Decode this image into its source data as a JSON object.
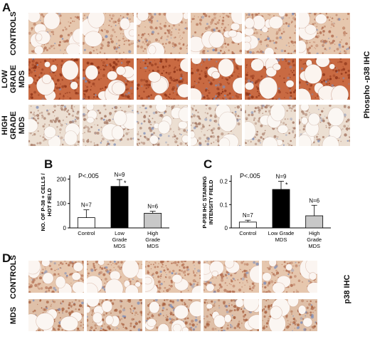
{
  "panel_a": {
    "letter": "A",
    "rows": [
      {
        "label_lines": [
          "CONTROLS"
        ],
        "tone": "control"
      },
      {
        "label_lines": [
          "LOW",
          "GRADE",
          "MDS"
        ],
        "tone": "low"
      },
      {
        "label_lines": [
          "HIGH",
          "GRADE",
          "MDS"
        ],
        "tone": "high"
      }
    ],
    "side_label": "Phospho -p38 IHC"
  },
  "panel_d": {
    "letter": "D",
    "rows": [
      {
        "label_lines": [
          "CONTROLS"
        ],
        "tone": "control"
      },
      {
        "label_lines": [
          "MDS"
        ],
        "tone": "mds"
      }
    ],
    "side_label": "p38 IHC"
  },
  "chart_data": [
    {
      "panel": "B",
      "type": "bar",
      "categories": [
        [
          "Control"
        ],
        [
          "Low",
          "Grade",
          "MDS"
        ],
        [
          "High",
          "Grade",
          "MDS"
        ]
      ],
      "values": [
        42,
        170,
        60
      ],
      "errors": [
        32,
        28,
        8
      ],
      "n_labels": [
        "N=7",
        "N=9",
        "N=6"
      ],
      "bar_colors": [
        "#ffffff",
        "#000000",
        "#c8c8c8"
      ],
      "significance": [
        "",
        "*",
        ""
      ],
      "annotation": "P<.005",
      "ylabel": [
        "NO. OF P-38 + CELLS /",
        "HOT FIELD"
      ],
      "yticks": [
        0,
        100,
        200
      ],
      "ylim": [
        0,
        210
      ]
    },
    {
      "panel": "C",
      "type": "bar",
      "categories": [
        [
          "Control"
        ],
        [
          "Low Grade",
          "MDS"
        ],
        [
          "High",
          "Grade",
          "MDS"
        ]
      ],
      "values": [
        0.025,
        0.165,
        0.052
      ],
      "errors": [
        0.008,
        0.035,
        0.045
      ],
      "n_labels": [
        "N=7",
        "N=9",
        "N=6"
      ],
      "bar_colors": [
        "#ffffff",
        "#000000",
        "#c8c8c8"
      ],
      "significance": [
        "",
        "*",
        ""
      ],
      "annotation": "P<.005",
      "ylabel": [
        "P-P38 IHC STAINING",
        "INTENSITY FIELD"
      ],
      "yticks": [
        0,
        0.1,
        0.2
      ],
      "ylim": [
        0,
        0.22
      ]
    }
  ],
  "chart_letters": [
    "B",
    "C"
  ],
  "tone_colors": {
    "control": {
      "bg": "#e6c7ae",
      "cell": "#b36f52",
      "fat": "#fbf5f1"
    },
    "low": {
      "bg": "#c96a42",
      "cell": "#8d3317",
      "fat": "#fbf4ef"
    },
    "high": {
      "bg": "#ecdfd2",
      "cell": "#a67a66",
      "fat": "#fbf7f3"
    },
    "mds": {
      "bg": "#dfc0a8",
      "cell": "#a8603f",
      "fat": "#fbf6f2"
    }
  }
}
